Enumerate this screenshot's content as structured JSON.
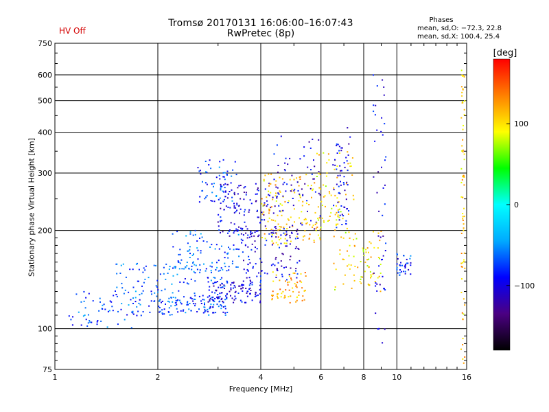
{
  "header": {
    "title_line1": "Tromsø 20170131 16:06:00–16:07:43",
    "title_line2": "RwPretec (8p)",
    "hv_status": "HV Off",
    "phase_title": "Phases",
    "phase_stats_0": "mean, sd,O: −72.3, 22.8",
    "phase_stats_x": "mean, sd,X: 100.4, 25.4"
  },
  "colorbar": {
    "label": "[deg]",
    "ticks": [
      100,
      0,
      -100
    ],
    "range": [
      -180,
      180
    ],
    "colors": [
      "#000000",
      "#4b0082",
      "#0000ff",
      "#00aaff",
      "#00ffff",
      "#00ff00",
      "#ffff00",
      "#ff8000",
      "#ff0000"
    ]
  },
  "colors": {
    "hv_text": "#d40000",
    "grid": "#000000",
    "text": "#000000"
  },
  "chart_data": {
    "type": "scatter",
    "xlabel": "Frequency [MHz]",
    "ylabel": "Stationary phase Virtual Height [km]",
    "xscale": "log",
    "yscale": "log",
    "xlim": [
      1,
      16
    ],
    "ylim": [
      75,
      750
    ],
    "grid": true,
    "xticks": [
      1,
      2,
      4,
      6,
      8,
      10,
      16
    ],
    "yticks": [
      75,
      100,
      200,
      300,
      400,
      500,
      600,
      750
    ],
    "xticklabels": [
      "1",
      "2",
      "4",
      "6",
      "8",
      "10",
      "16"
    ],
    "yticklabels": [
      "75",
      "100",
      "200",
      "300",
      "400",
      "500",
      "600",
      "750"
    ],
    "point_clusters": [
      {
        "x_range": [
          1.1,
          1.8
        ],
        "y_range": [
          100,
          130
        ],
        "phase": -70,
        "count": 60
      },
      {
        "x_range": [
          1.5,
          3.2
        ],
        "y_range": [
          110,
          160
        ],
        "phase": -70,
        "count": 160
      },
      {
        "x_range": [
          2.0,
          3.2
        ],
        "y_range": [
          110,
          125
        ],
        "phase": -75,
        "count": 90
      },
      {
        "x_range": [
          2.2,
          3.5
        ],
        "y_range": [
          150,
          200
        ],
        "phase": -65,
        "count": 80
      },
      {
        "x_range": [
          2.6,
          3.4
        ],
        "y_range": [
          240,
          330
        ],
        "phase": -75,
        "count": 60
      },
      {
        "x_range": [
          2.8,
          4.0
        ],
        "y_range": [
          120,
          140
        ],
        "phase": -100,
        "count": 110
      },
      {
        "x_range": [
          3.0,
          4.5
        ],
        "y_range": [
          190,
          280
        ],
        "phase": -100,
        "count": 140
      },
      {
        "x_range": [
          3.5,
          5.2
        ],
        "y_range": [
          140,
          200
        ],
        "phase": -100,
        "count": 110
      },
      {
        "x_range": [
          4.0,
          6.0
        ],
        "y_range": [
          180,
          300
        ],
        "phase": 110,
        "count": 140
      },
      {
        "x_range": [
          4.3,
          5.5
        ],
        "y_range": [
          120,
          150
        ],
        "phase": 120,
        "count": 60
      },
      {
        "x_range": [
          4.3,
          6.0
        ],
        "y_range": [
          200,
          390
        ],
        "phase": -100,
        "count": 70
      },
      {
        "x_range": [
          5.8,
          7.5
        ],
        "y_range": [
          200,
          350
        ],
        "phase": 100,
        "count": 70
      },
      {
        "x_range": [
          6.5,
          7.3
        ],
        "y_range": [
          200,
          420
        ],
        "phase": -100,
        "count": 60
      },
      {
        "x_range": [
          6.5,
          9.0
        ],
        "y_range": [
          130,
          200
        ],
        "phase": 100,
        "count": 80
      },
      {
        "x_range": [
          8.5,
          9.3
        ],
        "y_range": [
          90,
          600
        ],
        "phase": -100,
        "count": 50
      },
      {
        "x_range": [
          10.0,
          11.0
        ],
        "y_range": [
          145,
          170
        ],
        "phase": -80,
        "count": 35
      },
      {
        "x_range": [
          15.4,
          15.8
        ],
        "y_range": [
          78,
          620
        ],
        "phase": 110,
        "count": 70
      }
    ]
  }
}
